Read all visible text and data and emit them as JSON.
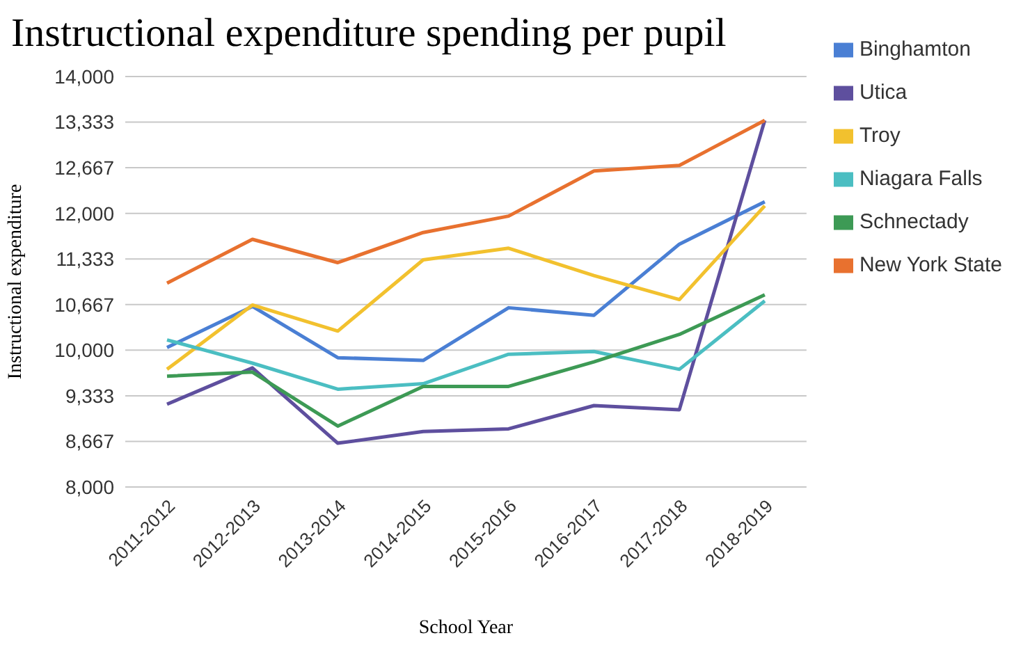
{
  "chart_data": {
    "type": "line",
    "title": "Instructional expenditure spending per pupil",
    "xlabel": "School Year",
    "ylabel": "Instructional expenditure",
    "categories": [
      "2011-2012",
      "2012-2013",
      "2013-2014",
      "2014-2015",
      "2015-2016",
      "2016-2017",
      "2017-2018",
      "2018-2019"
    ],
    "series": [
      {
        "name": "Binghamton",
        "color": "#4a7fd4",
        "values": [
          10040,
          10640,
          9890,
          9850,
          10620,
          10510,
          11550,
          12170
        ]
      },
      {
        "name": "Utica",
        "color": "#5e4f9e",
        "values": [
          9210,
          9740,
          8640,
          8810,
          8850,
          9190,
          9130,
          13360
        ]
      },
      {
        "name": "Troy",
        "color": "#f2c12e",
        "values": [
          9720,
          10660,
          10280,
          11320,
          11490,
          11090,
          10740,
          12110
        ]
      },
      {
        "name": "Niagara Falls",
        "color": "#4bbec2",
        "values": [
          10150,
          9810,
          9430,
          9510,
          9940,
          9980,
          9720,
          10720
        ]
      },
      {
        "name": "Schnectady",
        "color": "#3d9a55",
        "values": [
          9620,
          9680,
          8890,
          9470,
          9470,
          9830,
          10230,
          10810
        ]
      },
      {
        "name": "New York State",
        "color": "#e8712f",
        "values": [
          10980,
          11620,
          11280,
          11720,
          11960,
          12620,
          12700,
          13360
        ]
      }
    ],
    "ylim": [
      8000,
      14000
    ],
    "yticks": [
      {
        "value": 8000,
        "label": "8,000"
      },
      {
        "value": 8666.67,
        "label": "8,667"
      },
      {
        "value": 9333.33,
        "label": "9,333"
      },
      {
        "value": 10000,
        "label": "10,000"
      },
      {
        "value": 10666.67,
        "label": "10,667"
      },
      {
        "value": 11333.33,
        "label": "11,333"
      },
      {
        "value": 12000,
        "label": "12,000"
      },
      {
        "value": 12666.67,
        "label": "12,667"
      },
      {
        "value": 13333.33,
        "label": "13,333"
      },
      {
        "value": 14000,
        "label": "14,000"
      }
    ],
    "grid": "y",
    "legend": "right",
    "marker": "none",
    "line_style": "solid"
  }
}
